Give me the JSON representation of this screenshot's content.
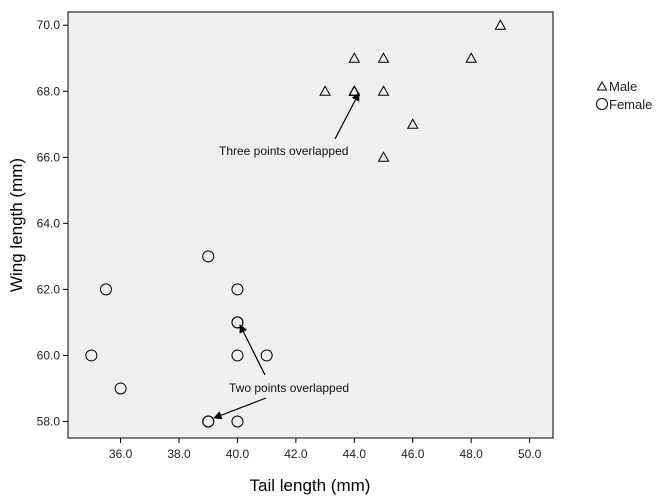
{
  "chart_data": {
    "type": "scatter",
    "xlabel": "Tail length (mm)",
    "ylabel": "Wing length (mm)",
    "xlim": [
      34.2,
      50.8
    ],
    "ylim": [
      57.5,
      70.4
    ],
    "x_ticks": [
      "36.0",
      "38.0",
      "40.0",
      "42.0",
      "44.0",
      "46.0",
      "48.0",
      "50.0"
    ],
    "y_ticks": [
      "58.0",
      "60.0",
      "62.0",
      "64.0",
      "66.0",
      "68.0",
      "70.0"
    ],
    "grid": false,
    "legend_position": "right",
    "plot_background": "#efefef",
    "series": [
      {
        "name": "Male",
        "marker": "triangle",
        "points": [
          {
            "x": 43,
            "y": 68
          },
          {
            "x": 44,
            "y": 69
          },
          {
            "x": 44,
            "y": 68
          },
          {
            "x": 44,
            "y": 68
          },
          {
            "x": 44,
            "y": 68
          },
          {
            "x": 45,
            "y": 69
          },
          {
            "x": 45,
            "y": 68
          },
          {
            "x": 45,
            "y": 66
          },
          {
            "x": 46,
            "y": 67
          },
          {
            "x": 48,
            "y": 69
          },
          {
            "x": 49,
            "y": 70
          }
        ]
      },
      {
        "name": "Female",
        "marker": "circle",
        "points": [
          {
            "x": 35,
            "y": 60
          },
          {
            "x": 35.5,
            "y": 62
          },
          {
            "x": 36,
            "y": 59
          },
          {
            "x": 39,
            "y": 63
          },
          {
            "x": 39,
            "y": 58
          },
          {
            "x": 39,
            "y": 58
          },
          {
            "x": 40,
            "y": 62
          },
          {
            "x": 40,
            "y": 61
          },
          {
            "x": 40,
            "y": 61
          },
          {
            "x": 40,
            "y": 60
          },
          {
            "x": 40,
            "y": 58
          },
          {
            "x": 41,
            "y": 60
          }
        ]
      }
    ],
    "annotations": [
      {
        "text": "Three points overlapped",
        "x": 44,
        "y": 68
      },
      {
        "text": "Two points overlapped",
        "x": 40,
        "y": 61
      },
      {
        "text": "Two points overlapped",
        "x": 39,
        "y": 58
      }
    ]
  }
}
